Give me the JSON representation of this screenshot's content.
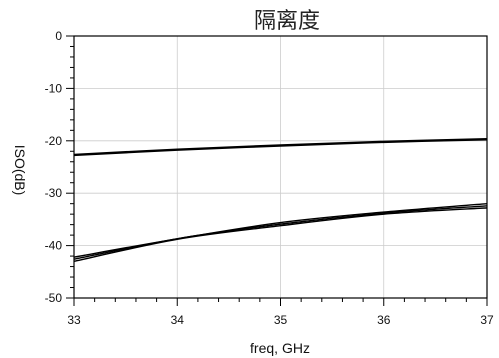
{
  "chart_data": {
    "type": "line",
    "title": "隔离度",
    "xlabel": "freq, GHz",
    "ylabel": "ISO(dB)",
    "xlim": [
      33,
      37
    ],
    "ylim": [
      -50,
      0
    ],
    "x_ticks": [
      33,
      34,
      35,
      36,
      37
    ],
    "y_ticks": [
      0,
      -10,
      -20,
      -30,
      -40,
      -50
    ],
    "grid": true,
    "series": [
      {
        "x": [
          33,
          34,
          35,
          36,
          37
        ],
        "values": [
          -22.6,
          -21.6,
          -20.8,
          -20.1,
          -19.6
        ]
      },
      {
        "x": [
          33,
          34,
          35,
          36,
          37
        ],
        "values": [
          -22.8,
          -21.8,
          -21.0,
          -20.3,
          -19.8
        ]
      },
      {
        "x": [
          33,
          34,
          35,
          36,
          37
        ],
        "values": [
          -42.2,
          -38.7,
          -35.6,
          -33.6,
          -32.0
        ]
      },
      {
        "x": [
          33,
          34,
          35,
          36,
          37
        ],
        "values": [
          -42.6,
          -38.7,
          -35.9,
          -33.8,
          -32.4
        ]
      },
      {
        "x": [
          33,
          34,
          35,
          36,
          37
        ],
        "values": [
          -43.0,
          -38.8,
          -36.2,
          -34.0,
          -32.8
        ]
      }
    ]
  }
}
